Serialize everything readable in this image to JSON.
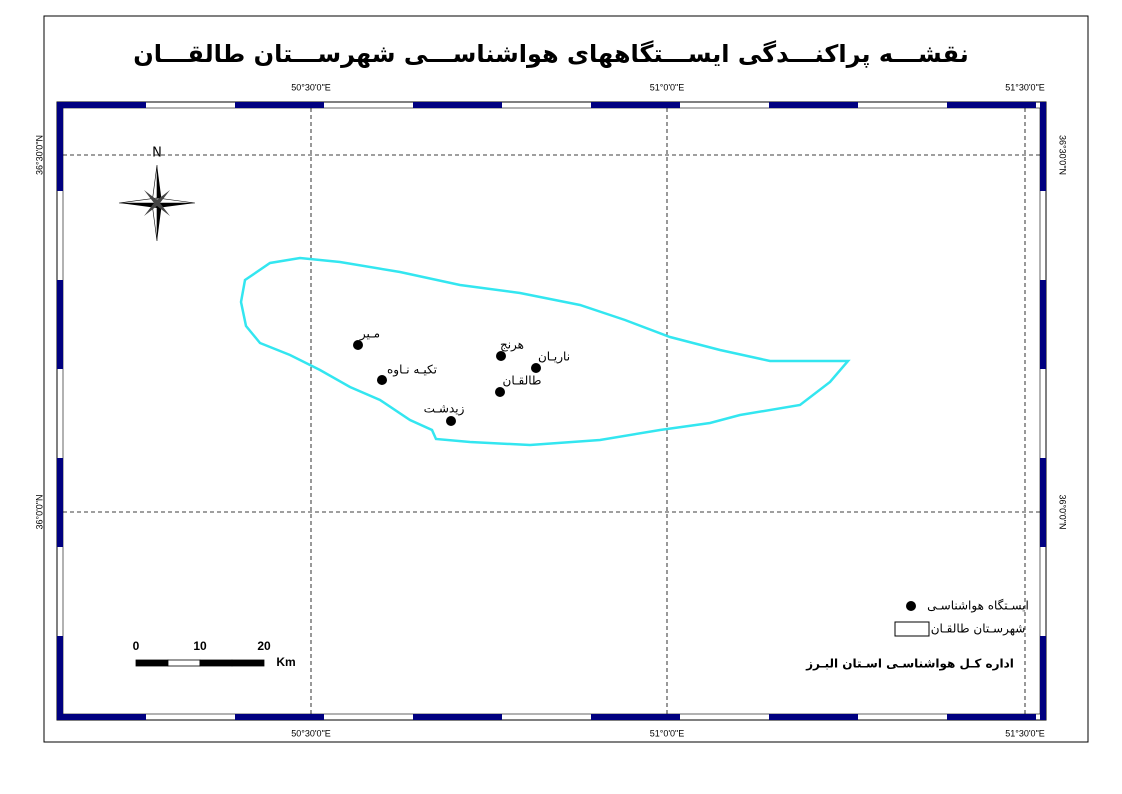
{
  "title": "نقشـــه پراکنـــدگی ایســـتگاههای هواشناســـی شهرســـتان طالقـــان",
  "grid_labels": {
    "top": [
      "50°30'0\"E",
      "51°0'0\"E",
      "51°30'0\"E"
    ],
    "bottom": [
      "50°30'0\"E",
      "51°0'0\"E",
      "51°30'0\"E"
    ],
    "left": [
      "36°30'0\"N",
      "36°0'0\"N"
    ],
    "right": [
      "36°30'0\"N",
      "36°0'0\"N"
    ]
  },
  "north": "N",
  "stations": [
    "مـیر",
    "تکیـه نـاوه",
    "هرنج",
    "ناریـان",
    "طالقـان",
    "زیدشـت"
  ],
  "scale_bar": {
    "ticks": [
      0,
      10,
      20
    ],
    "unit": "Km"
  },
  "legend": {
    "station": "ایسـتگاه هواشناسـی",
    "county": "شهرسـتان طالقـان"
  },
  "footer": "اداره کـل هواشناسـی اسـتان البـرز"
}
